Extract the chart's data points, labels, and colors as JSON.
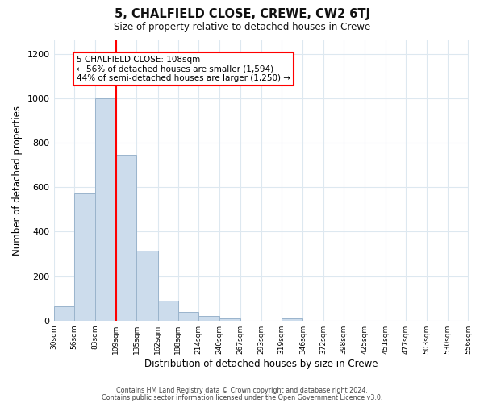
{
  "title_line1": "5, CHALFIELD CLOSE, CREWE, CW2 6TJ",
  "title_line2": "Size of property relative to detached houses in Crewe",
  "xlabel": "Distribution of detached houses by size in Crewe",
  "ylabel": "Number of detached properties",
  "bar_edges": [
    30,
    56,
    83,
    109,
    135,
    162,
    188,
    214,
    240,
    267,
    293,
    319,
    346,
    372,
    398,
    425,
    451,
    477,
    503,
    530,
    556
  ],
  "bar_heights": [
    65,
    570,
    1000,
    745,
    315,
    90,
    40,
    20,
    10,
    0,
    0,
    10,
    0,
    0,
    0,
    0,
    0,
    0,
    0,
    0
  ],
  "bar_color": "#ccdcec",
  "bar_edgecolor": "#9ab4cc",
  "red_line_x": 109,
  "ylim": [
    0,
    1260
  ],
  "yticks": [
    0,
    200,
    400,
    600,
    800,
    1000,
    1200
  ],
  "annotation_title": "5 CHALFIELD CLOSE: 108sqm",
  "annotation_line2": "← 56% of detached houses are smaller (1,594)",
  "annotation_line3": "44% of semi-detached houses are larger (1,250) →",
  "footer_line1": "Contains HM Land Registry data © Crown copyright and database right 2024.",
  "footer_line2": "Contains public sector information licensed under the Open Government Licence v3.0.",
  "background_color": "#ffffff",
  "grid_color": "#dde8f0"
}
